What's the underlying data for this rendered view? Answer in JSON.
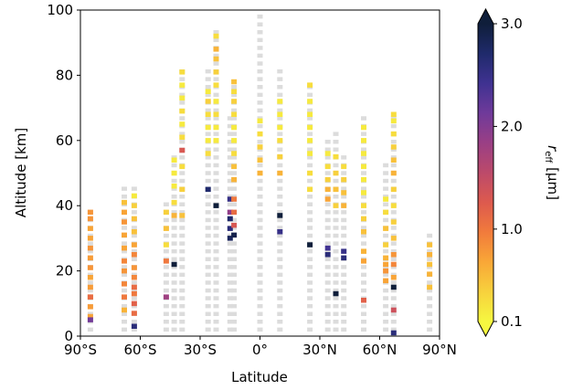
{
  "chart_data": {
    "type": "scatter",
    "title": "",
    "xlabel": "Latitude",
    "ylabel": "Altitude [km]",
    "xlim": [
      -90,
      90
    ],
    "ylim": [
      0,
      100
    ],
    "x_ticks": [
      -90,
      -60,
      -30,
      0,
      30,
      60,
      90
    ],
    "x_tick_labels": [
      "90°S",
      "60°S",
      "30°S",
      "0°",
      "30°N",
      "60°N",
      "90°N"
    ],
    "y_ticks": [
      0,
      20,
      40,
      60,
      80,
      100
    ],
    "y_tick_labels": [
      "0",
      "20",
      "40",
      "60",
      "80",
      "100"
    ],
    "grid": false,
    "colorbar": {
      "label_main": "r",
      "label_sub": "eff",
      "label_unit": " [μm]",
      "ticks": [
        0.1,
        1.0,
        2.0,
        3.0
      ],
      "tick_labels": [
        "0.1",
        "1.0",
        "2.0",
        "3.0"
      ],
      "range": [
        0.1,
        3.0
      ],
      "extend": "both",
      "colormap": [
        "#f6f740",
        "#f7d13d",
        "#f9a737",
        "#f17b3c",
        "#dd5a4e",
        "#bc4a6a",
        "#9a3f85",
        "#6f3a9a",
        "#3f3291",
        "#1f2a6b",
        "#0f1e3a"
      ]
    },
    "no_data_color": "#dcdcdc",
    "columns": [
      {
        "lat": -85,
        "gray": [
          [
            2,
            40
          ]
        ],
        "colored": [
          [
            6,
            0.7
          ],
          [
            9,
            0.75
          ],
          [
            12,
            0.75
          ],
          [
            15,
            0.75
          ],
          [
            18,
            0.7
          ],
          [
            21,
            0.8
          ],
          [
            24,
            0.75
          ],
          [
            27,
            0.8
          ],
          [
            30,
            0.7
          ],
          [
            33,
            0.7
          ],
          [
            36,
            0.8
          ],
          [
            38,
            0.8
          ],
          [
            12,
            1.1
          ],
          [
            5,
            2.1
          ]
        ]
      },
      {
        "lat": -68,
        "gray": [
          [
            2,
            47
          ]
        ],
        "colored": [
          [
            8,
            0.6
          ],
          [
            12,
            1.0
          ],
          [
            16,
            0.9
          ],
          [
            20,
            0.8
          ],
          [
            23,
            0.9
          ],
          [
            27,
            0.7
          ],
          [
            31,
            0.7
          ],
          [
            35,
            0.8
          ],
          [
            38,
            0.7
          ],
          [
            41,
            0.5
          ]
        ]
      },
      {
        "lat": -63,
        "gray": [
          [
            2,
            46
          ]
        ],
        "colored": [
          [
            3,
            2.6
          ],
          [
            7,
            1.1
          ],
          [
            10,
            1.2
          ],
          [
            13,
            1.0
          ],
          [
            15,
            1.1
          ],
          [
            18,
            0.9
          ],
          [
            21,
            0.8
          ],
          [
            25,
            0.9
          ],
          [
            28,
            0.7
          ],
          [
            32,
            0.5
          ],
          [
            36,
            0.5
          ],
          [
            40,
            0.4
          ],
          [
            43,
            0.2
          ]
        ]
      },
      {
        "lat": -47,
        "gray": [
          [
            2,
            42
          ]
        ],
        "colored": [
          [
            12,
            1.8
          ],
          [
            23,
            1.0
          ],
          [
            28,
            0.3
          ],
          [
            33,
            0.5
          ],
          [
            38,
            0.4
          ]
        ]
      },
      {
        "lat": -43,
        "gray": [
          [
            2,
            57
          ]
        ],
        "colored": [
          [
            22,
            3.0
          ],
          [
            37,
            0.6
          ],
          [
            41,
            0.3
          ],
          [
            46,
            0.2
          ],
          [
            50,
            0.2
          ],
          [
            54,
            0.2
          ]
        ]
      },
      {
        "lat": -39,
        "gray": [
          [
            2,
            82
          ]
        ],
        "colored": [
          [
            37,
            0.5
          ],
          [
            45,
            0.4
          ],
          [
            52,
            0.3
          ],
          [
            57,
            1.3
          ],
          [
            61,
            0.3
          ],
          [
            65,
            0.2
          ],
          [
            69,
            0.3
          ],
          [
            73,
            0.2
          ],
          [
            77,
            0.2
          ],
          [
            81,
            0.3
          ]
        ]
      },
      {
        "lat": -26,
        "gray": [
          [
            2,
            83
          ]
        ],
        "colored": [
          [
            45,
            2.7
          ],
          [
            56,
            0.3
          ],
          [
            60,
            0.2
          ],
          [
            64,
            0.2
          ],
          [
            68,
            0.3
          ],
          [
            72,
            0.4
          ],
          [
            75,
            0.2
          ]
        ]
      },
      {
        "lat": -22,
        "gray": [
          [
            2,
            94
          ]
        ],
        "colored": [
          [
            40,
            3.0
          ],
          [
            60,
            0.2
          ],
          [
            64,
            0.2
          ],
          [
            68,
            0.3
          ],
          [
            72,
            0.2
          ],
          [
            77,
            0.3
          ],
          [
            81,
            0.4
          ],
          [
            85,
            0.5
          ],
          [
            88,
            0.6
          ],
          [
            92,
            0.3
          ]
        ]
      },
      {
        "lat": -15,
        "gray": [
          [
            2,
            68
          ]
        ],
        "colored": [
          [
            30,
            2.8
          ],
          [
            33,
            2.6
          ],
          [
            36,
            2.7
          ],
          [
            38,
            1.9
          ],
          [
            42,
            2.5
          ]
        ]
      },
      {
        "lat": -13,
        "gray": [
          [
            2,
            78
          ]
        ],
        "colored": [
          [
            31,
            2.9
          ],
          [
            34,
            1.3
          ],
          [
            38,
            1.1
          ],
          [
            42,
            1.0
          ],
          [
            48,
            0.6
          ],
          [
            52,
            0.5
          ],
          [
            56,
            0.3
          ],
          [
            60,
            0.2
          ],
          [
            64,
            0.2
          ],
          [
            68,
            0.3
          ],
          [
            72,
            0.4
          ],
          [
            75,
            0.3
          ],
          [
            78,
            0.5
          ]
        ]
      },
      {
        "lat": 0,
        "gray": [
          [
            2,
            100
          ]
        ],
        "colored": [
          [
            50,
            0.6
          ],
          [
            54,
            0.5
          ],
          [
            58,
            0.4
          ],
          [
            62,
            0.3
          ],
          [
            66,
            0.2
          ]
        ]
      },
      {
        "lat": 10,
        "gray": [
          [
            2,
            82
          ]
        ],
        "colored": [
          [
            32,
            2.5
          ],
          [
            37,
            3.0
          ],
          [
            50,
            0.6
          ],
          [
            55,
            0.4
          ],
          [
            60,
            0.3
          ],
          [
            64,
            0.2
          ],
          [
            68,
            0.2
          ],
          [
            72,
            0.2
          ]
        ]
      },
      {
        "lat": 25,
        "gray": [
          [
            2,
            78
          ]
        ],
        "colored": [
          [
            28,
            3.0
          ],
          [
            45,
            0.3
          ],
          [
            50,
            0.3
          ],
          [
            56,
            0.2
          ],
          [
            60,
            0.2
          ],
          [
            64,
            0.2
          ],
          [
            68,
            0.2
          ],
          [
            72,
            0.2
          ],
          [
            77,
            0.3
          ]
        ]
      },
      {
        "lat": 34,
        "gray": [
          [
            2,
            60
          ]
        ],
        "colored": [
          [
            25,
            2.6
          ],
          [
            27,
            2.4
          ],
          [
            42,
            0.7
          ],
          [
            45,
            0.6
          ],
          [
            48,
            0.4
          ],
          [
            52,
            0.3
          ],
          [
            56,
            0.2
          ]
        ]
      },
      {
        "lat": 38,
        "gray": [
          [
            2,
            62
          ]
        ],
        "colored": [
          [
            13,
            3.0
          ],
          [
            40,
            0.4
          ],
          [
            45,
            0.5
          ],
          [
            50,
            0.4
          ],
          [
            55,
            0.3
          ]
        ]
      },
      {
        "lat": 42,
        "gray": [
          [
            2,
            56
          ]
        ],
        "colored": [
          [
            24,
            2.6
          ],
          [
            26,
            2.5
          ],
          [
            40,
            0.6
          ],
          [
            44,
            0.5
          ],
          [
            48,
            0.4
          ],
          [
            52,
            0.3
          ]
        ]
      },
      {
        "lat": 52,
        "gray": [
          [
            2,
            68
          ]
        ],
        "colored": [
          [
            11,
            1.2
          ],
          [
            23,
            0.7
          ],
          [
            26,
            0.6
          ],
          [
            32,
            0.5
          ],
          [
            36,
            0.4
          ],
          [
            40,
            0.3
          ],
          [
            44,
            0.2
          ],
          [
            48,
            0.2
          ],
          [
            52,
            0.2
          ],
          [
            56,
            0.2
          ],
          [
            60,
            0.2
          ],
          [
            64,
            0.2
          ]
        ]
      },
      {
        "lat": 63,
        "gray": [
          [
            2,
            53
          ]
        ],
        "colored": [
          [
            17,
            0.7
          ],
          [
            20,
            0.8
          ],
          [
            22,
            0.7
          ],
          [
            24,
            0.6
          ],
          [
            28,
            0.4
          ],
          [
            33,
            0.5
          ],
          [
            38,
            0.3
          ],
          [
            42,
            0.2
          ]
        ]
      },
      {
        "lat": 67,
        "gray": [
          [
            2,
            68
          ]
        ],
        "colored": [
          [
            1,
            2.6
          ],
          [
            8,
            1.4
          ],
          [
            15,
            3.0
          ],
          [
            18,
            0.7
          ],
          [
            22,
            0.9
          ],
          [
            25,
            0.8
          ],
          [
            30,
            0.5
          ],
          [
            35,
            0.4
          ],
          [
            40,
            0.3
          ],
          [
            45,
            0.4
          ],
          [
            50,
            0.6
          ],
          [
            54,
            0.5
          ],
          [
            58,
            0.4
          ],
          [
            62,
            0.3
          ],
          [
            66,
            0.2
          ],
          [
            68,
            0.3
          ]
        ]
      },
      {
        "lat": 85,
        "gray": [
          [
            2,
            33
          ]
        ],
        "colored": [
          [
            15,
            0.5
          ],
          [
            19,
            0.6
          ],
          [
            22,
            0.5
          ],
          [
            25,
            0.6
          ],
          [
            28,
            0.5
          ]
        ]
      }
    ]
  }
}
